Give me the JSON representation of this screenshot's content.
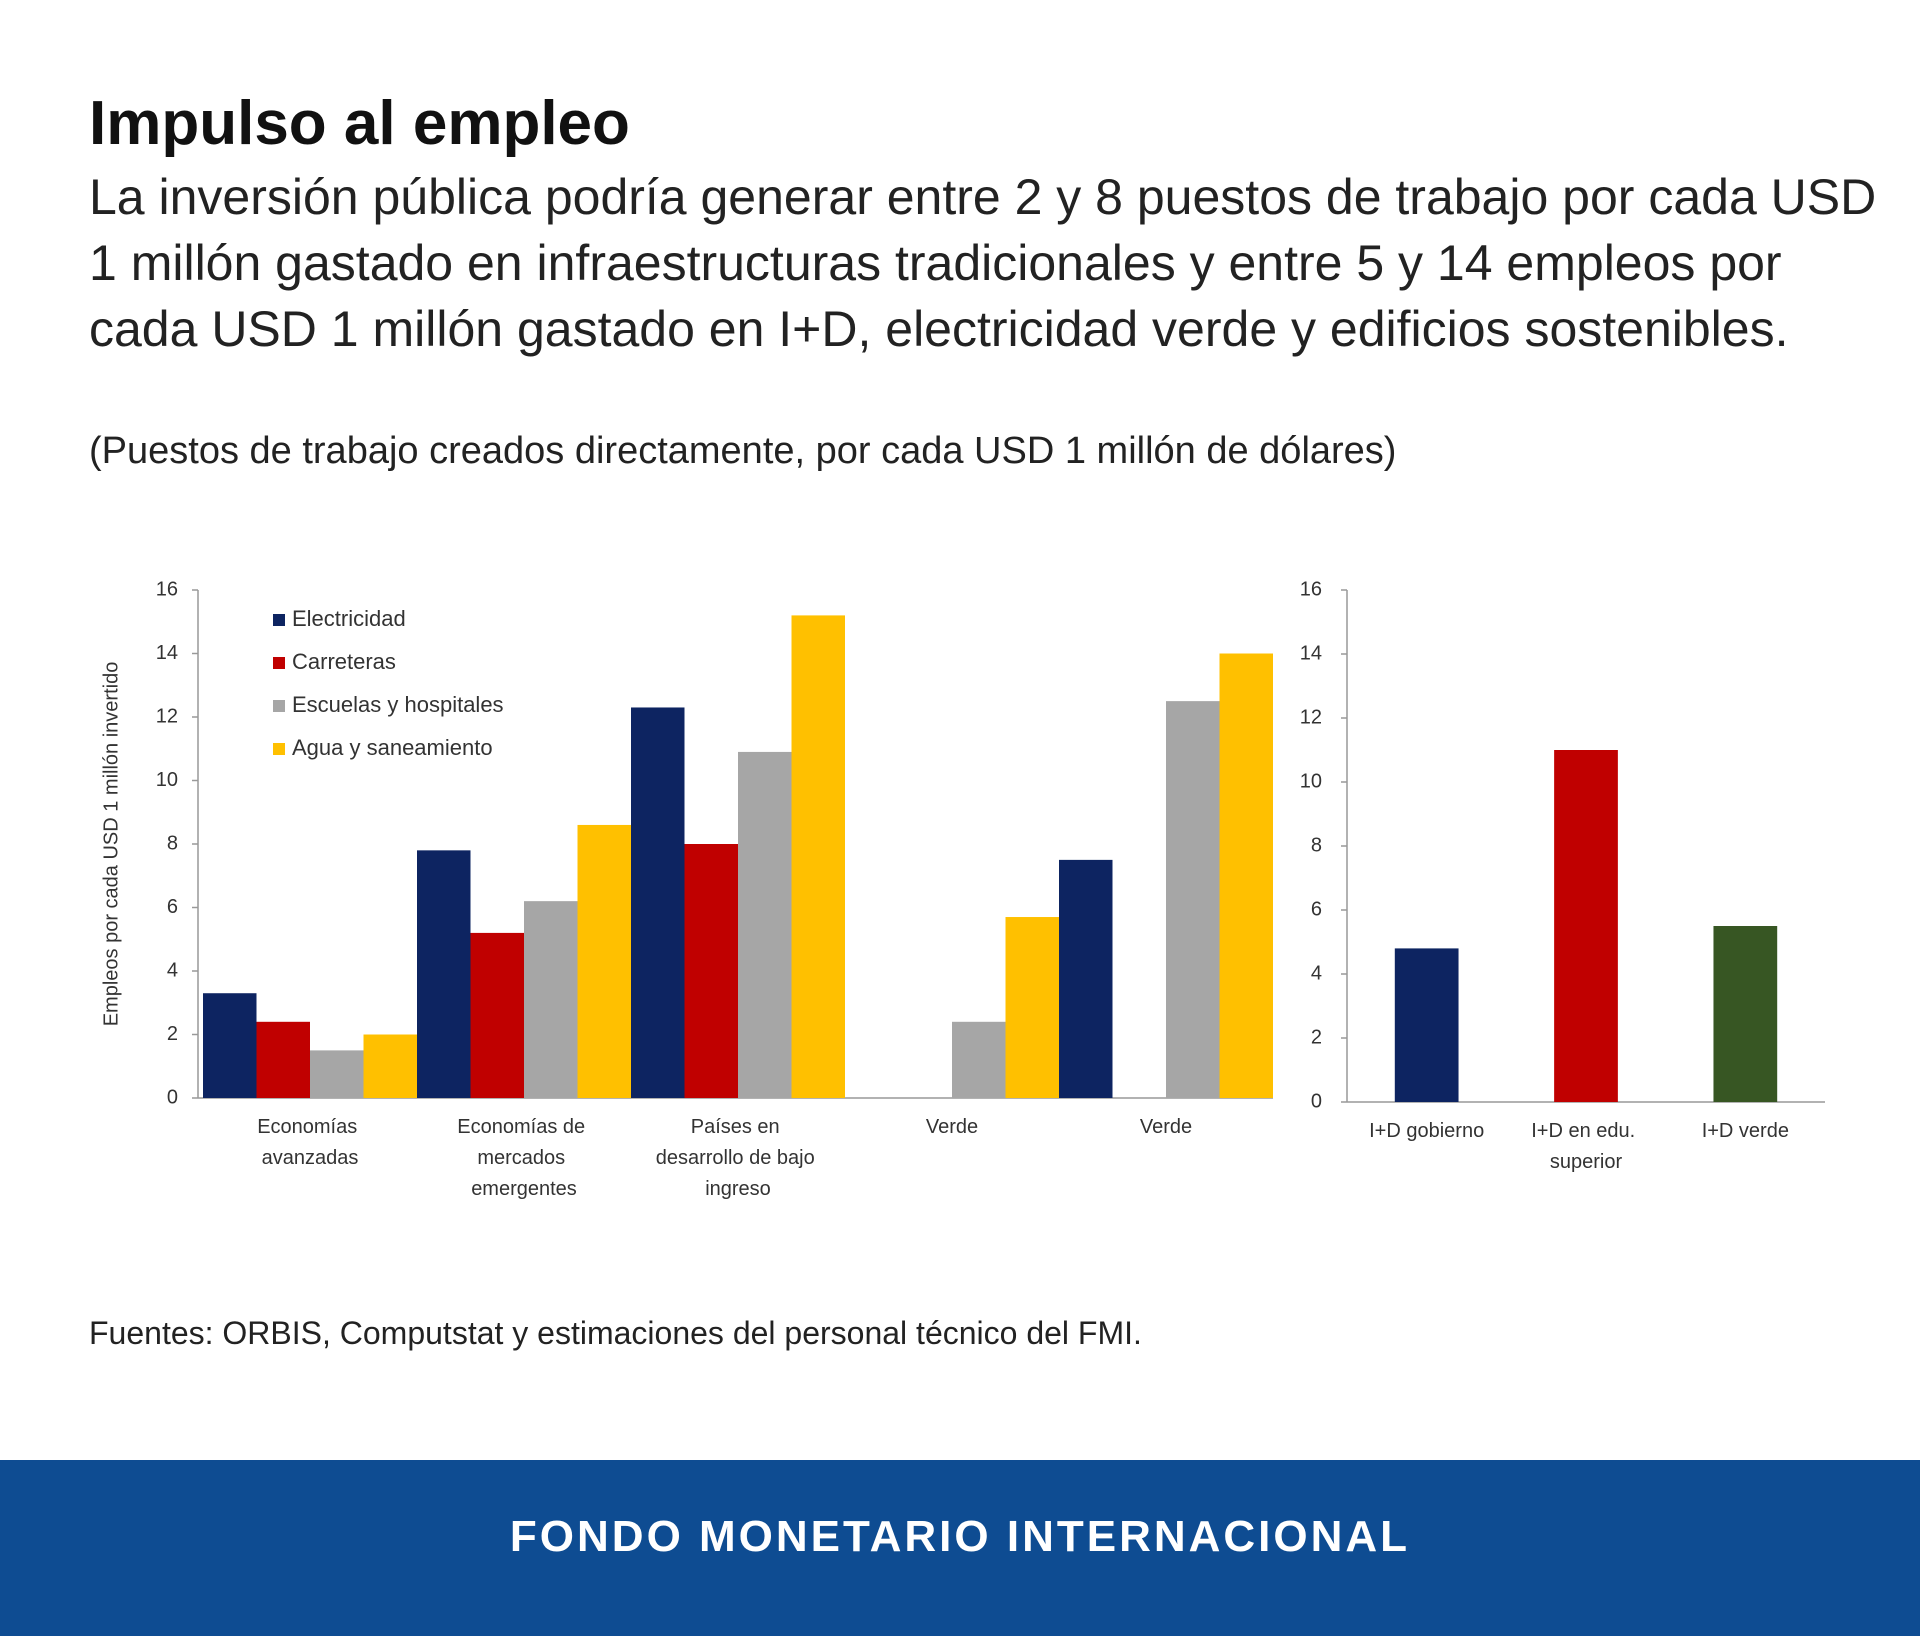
{
  "title": "Impulso al empleo",
  "subtitle": "La inversión pública podría generar entre 2 y 8 puestos de trabajo por cada USD 1 millón gastado en infraestructuras tradicionales y entre 5 y 14 empleos por cada USD 1 millón gastado en I+D, electricidad verde y edificios sostenibles.",
  "note": "(Puestos de trabajo creados directamente, por cada USD 1 millón de dólares)",
  "source": "Fuentes: ORBIS, Computstat y estimaciones del personal técnico del FMI.",
  "footer": "FONDO MONETARIO INTERNACIONAL",
  "chart_data": [
    {
      "type": "grouped_bar",
      "y_label": "Empleos por cada USD 1 millón invertido",
      "categories": [
        "Economías avanzadas",
        "Economías de mercados emergentes",
        "Países en desarrollo de bajo ingreso",
        "Verde",
        "Verde"
      ],
      "series": [
        {
          "name": "Electricidad",
          "color": "#0d2461",
          "values": [
            3.3,
            7.8,
            12.3,
            null,
            7.5
          ]
        },
        {
          "name": "Carreteras",
          "color": "#c00000",
          "values": [
            2.4,
            5.2,
            8.0,
            null,
            null
          ]
        },
        {
          "name": "Escuelas y hospitales",
          "color": "#a6a6a6",
          "values": [
            1.5,
            6.2,
            10.9,
            2.4,
            12.5
          ]
        },
        {
          "name": "Agua y saneamiento",
          "color": "#ffc000",
          "values": [
            2.0,
            8.6,
            15.2,
            5.7,
            14.0
          ]
        }
      ],
      "ylim": [
        0,
        16
      ],
      "yticks": [
        0,
        2,
        4,
        6,
        8,
        10,
        12,
        14,
        16
      ],
      "legend": "upper left"
    },
    {
      "type": "bar",
      "categories": [
        "I+D gobierno",
        "I+D en edu. superior",
        "I+D verde"
      ],
      "values": [
        4.8,
        11.0,
        5.5
      ],
      "colors": [
        "#0d2461",
        "#c00000",
        "#375623"
      ],
      "ylim": [
        0,
        16
      ],
      "yticks": [
        0,
        2,
        4,
        6,
        8,
        10,
        12,
        14,
        16
      ]
    }
  ]
}
